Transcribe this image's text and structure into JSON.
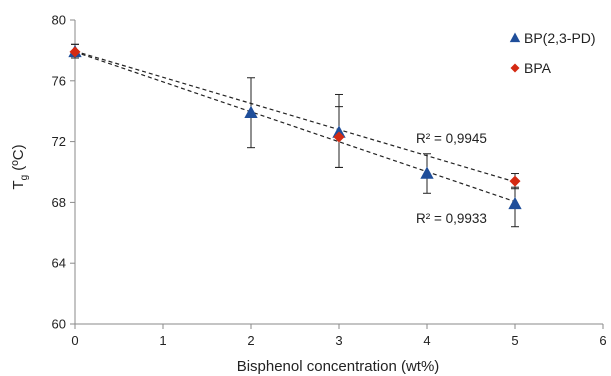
{
  "chart_data": {
    "type": "scatter",
    "xlabel": "Bisphenol concentration (wt%)",
    "ylabel": {
      "main": "T",
      "sub": "g",
      "rest": " (ºC)"
    },
    "xlim": [
      0,
      6
    ],
    "ylim": [
      60,
      80
    ],
    "xticks": [
      "0",
      "1",
      "2",
      "3",
      "4",
      "5",
      "6"
    ],
    "yticks": [
      "60",
      "64",
      "68",
      "72",
      "76",
      "80"
    ],
    "grid": false,
    "legend_position": "top-right",
    "series": [
      {
        "name": "BP(2,3-PD)",
        "marker": "triangle",
        "color": "#1f4e9a",
        "x": [
          0,
          2,
          3,
          4,
          5
        ],
        "y": [
          77.9,
          73.9,
          72.6,
          69.9,
          67.9
        ],
        "err_low": [
          0.4,
          2.3,
          2.3,
          1.3,
          1.5
        ],
        "err_high": [
          0.5,
          2.3,
          2.5,
          1.3,
          1.1
        ],
        "trendline": {
          "slope": -1.97,
          "intercept": 77.9,
          "r2": "R² = 0,9933"
        }
      },
      {
        "name": "BPA",
        "marker": "diamond",
        "color": "#d42a12",
        "x": [
          0,
          3,
          5
        ],
        "y": [
          77.9,
          72.3,
          69.4
        ],
        "err_low": [
          0.4,
          2.0,
          0.5
        ],
        "err_high": [
          0.5,
          2.0,
          0.5
        ],
        "trendline": {
          "slope": -1.72,
          "intercept": 77.95,
          "r2": "R² = 0,9945"
        }
      }
    ]
  }
}
